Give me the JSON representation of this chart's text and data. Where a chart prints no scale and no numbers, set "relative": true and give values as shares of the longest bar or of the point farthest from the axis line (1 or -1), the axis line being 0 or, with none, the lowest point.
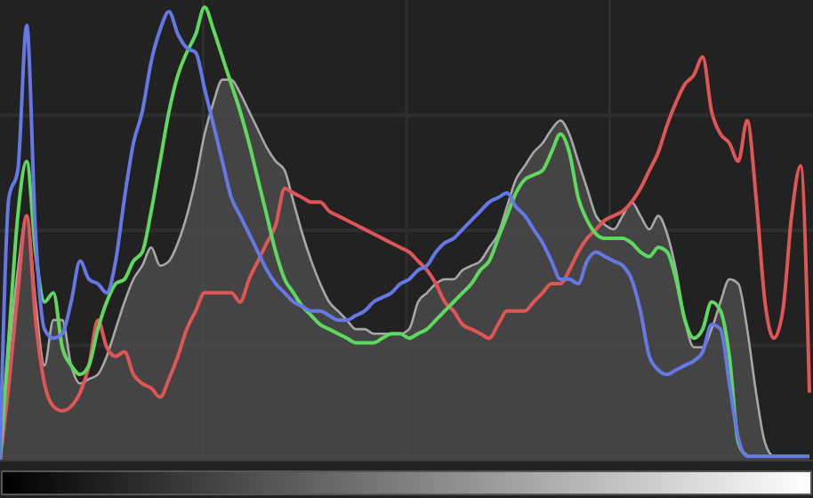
{
  "chart_data": {
    "type": "line",
    "relative": true,
    "grid": true,
    "categories": [
      null,
      null,
      null,
      null,
      null,
      null,
      null,
      null,
      null,
      null,
      null,
      null,
      null,
      null,
      null,
      null,
      null,
      null,
      null,
      null,
      null,
      null,
      null,
      null,
      null,
      null,
      null,
      null,
      null,
      null,
      null,
      null,
      null,
      null,
      null,
      null,
      null,
      null,
      null,
      null,
      null,
      null,
      null,
      null,
      null,
      null,
      null,
      null,
      null,
      null,
      null,
      null,
      null,
      null,
      null,
      null,
      null,
      null,
      null,
      null,
      null,
      null,
      null,
      null,
      null,
      null,
      null,
      null,
      null,
      null,
      null,
      null,
      null,
      null,
      null,
      null,
      null,
      null,
      null,
      null,
      null,
      null,
      null,
      null,
      null,
      null,
      null,
      null,
      null,
      null,
      null,
      null
    ],
    "series": [
      {
        "type": "area",
        "color": "#a8a8a8",
        "values": [
          0,
          0.23,
          0.42,
          0.54,
          0.35,
          0.21,
          0.31,
          0.31,
          0.21,
          0.17,
          0.18,
          0.19,
          0.23,
          0.29,
          0.35,
          0.4,
          0.43,
          0.47,
          0.43,
          0.44,
          0.48,
          0.54,
          0.62,
          0.72,
          0.79,
          0.84,
          0.84,
          0.81,
          0.77,
          0.73,
          0.69,
          0.66,
          0.64,
          0.57,
          0.5,
          0.44,
          0.39,
          0.35,
          0.33,
          0.31,
          0.29,
          0.29,
          0.28,
          0.28,
          0.28,
          0.28,
          0.29,
          0.35,
          0.37,
          0.39,
          0.4,
          0.4,
          0.42,
          0.43,
          0.44,
          0.47,
          0.5,
          0.56,
          0.62,
          0.65,
          0.68,
          0.7,
          0.73,
          0.75,
          0.72,
          0.66,
          0.6,
          0.54,
          0.52,
          0.51,
          0.54,
          0.57,
          0.54,
          0.51,
          0.54,
          0.5,
          0.42,
          0.31,
          0.25,
          0.25,
          0.29,
          0.35,
          0.4,
          0.39,
          0.29,
          0.15,
          0.04,
          0.01,
          0.01,
          0.01,
          0.01,
          0.01
        ]
      },
      {
        "color": "#e05555",
        "values": [
          0,
          0.17,
          0.37,
          0.54,
          0.31,
          0.17,
          0.12,
          0.11,
          0.12,
          0.15,
          0.21,
          0.31,
          0.25,
          0.23,
          0.24,
          0.19,
          0.17,
          0.16,
          0.14,
          0.18,
          0.23,
          0.29,
          0.33,
          0.37,
          0.37,
          0.37,
          0.37,
          0.35,
          0.4,
          0.44,
          0.48,
          0.52,
          0.6,
          0.59,
          0.58,
          0.57,
          0.57,
          0.55,
          0.54,
          0.53,
          0.52,
          0.51,
          0.5,
          0.49,
          0.48,
          0.47,
          0.46,
          0.44,
          0.42,
          0.39,
          0.35,
          0.33,
          0.3,
          0.29,
          0.28,
          0.27,
          0.3,
          0.33,
          0.33,
          0.33,
          0.35,
          0.37,
          0.39,
          0.39,
          0.42,
          0.46,
          0.49,
          0.51,
          0.53,
          0.54,
          0.55,
          0.57,
          0.6,
          0.64,
          0.68,
          0.74,
          0.79,
          0.83,
          0.85,
          0.89,
          0.77,
          0.72,
          0.7,
          0.66,
          0.75,
          0.58,
          0.35,
          0.27,
          0.33,
          0.54,
          0.65,
          0.15
        ]
      },
      {
        "color": "#5fd85f",
        "values": [
          0,
          0.27,
          0.54,
          0.66,
          0.46,
          0.35,
          0.37,
          0.25,
          0.21,
          0.19,
          0.21,
          0.29,
          0.35,
          0.39,
          0.4,
          0.44,
          0.46,
          0.55,
          0.66,
          0.77,
          0.85,
          0.9,
          0.94,
          1,
          0.95,
          0.89,
          0.83,
          0.77,
          0.7,
          0.62,
          0.54,
          0.46,
          0.4,
          0.37,
          0.34,
          0.32,
          0.3,
          0.29,
          0.28,
          0.27,
          0.26,
          0.26,
          0.26,
          0.27,
          0.28,
          0.28,
          0.27,
          0.28,
          0.29,
          0.31,
          0.33,
          0.35,
          0.37,
          0.39,
          0.42,
          0.44,
          0.49,
          0.54,
          0.59,
          0.62,
          0.63,
          0.64,
          0.68,
          0.72,
          0.68,
          0.58,
          0.53,
          0.5,
          0.49,
          0.49,
          0.49,
          0.48,
          0.46,
          0.45,
          0.47,
          0.46,
          0.4,
          0.31,
          0.27,
          0.29,
          0.35,
          0.33,
          0.23,
          0.04,
          0.01,
          null,
          null,
          null,
          null,
          null,
          null,
          null
        ]
      },
      {
        "color": "#6677e6",
        "values": [
          0,
          0.58,
          0.64,
          0.96,
          0.5,
          0.29,
          0.27,
          0.28,
          0.35,
          0.44,
          0.4,
          0.39,
          0.37,
          0.44,
          0.58,
          0.7,
          0.77,
          0.88,
          0.95,
          0.99,
          0.94,
          0.91,
          0.9,
          0.82,
          0.74,
          0.66,
          0.58,
          0.54,
          0.5,
          0.46,
          0.42,
          0.39,
          0.37,
          0.35,
          0.34,
          0.33,
          0.33,
          0.32,
          0.31,
          0.31,
          0.32,
          0.33,
          0.35,
          0.36,
          0.37,
          0.39,
          0.4,
          0.42,
          0.43,
          0.46,
          0.48,
          0.49,
          0.51,
          0.53,
          0.55,
          0.57,
          0.58,
          0.59,
          0.56,
          0.54,
          0.51,
          0.48,
          0.44,
          0.4,
          0.4,
          0.39,
          0.44,
          0.46,
          0.45,
          0.44,
          0.43,
          0.4,
          0.33,
          0.23,
          0.2,
          0.19,
          0.2,
          0.21,
          0.22,
          0.24,
          0.3,
          0.29,
          0.17,
          0.05,
          0.01,
          0.01,
          0.01,
          0.01,
          0.01,
          0.01,
          0.01,
          0.01
        ]
      }
    ]
  }
}
